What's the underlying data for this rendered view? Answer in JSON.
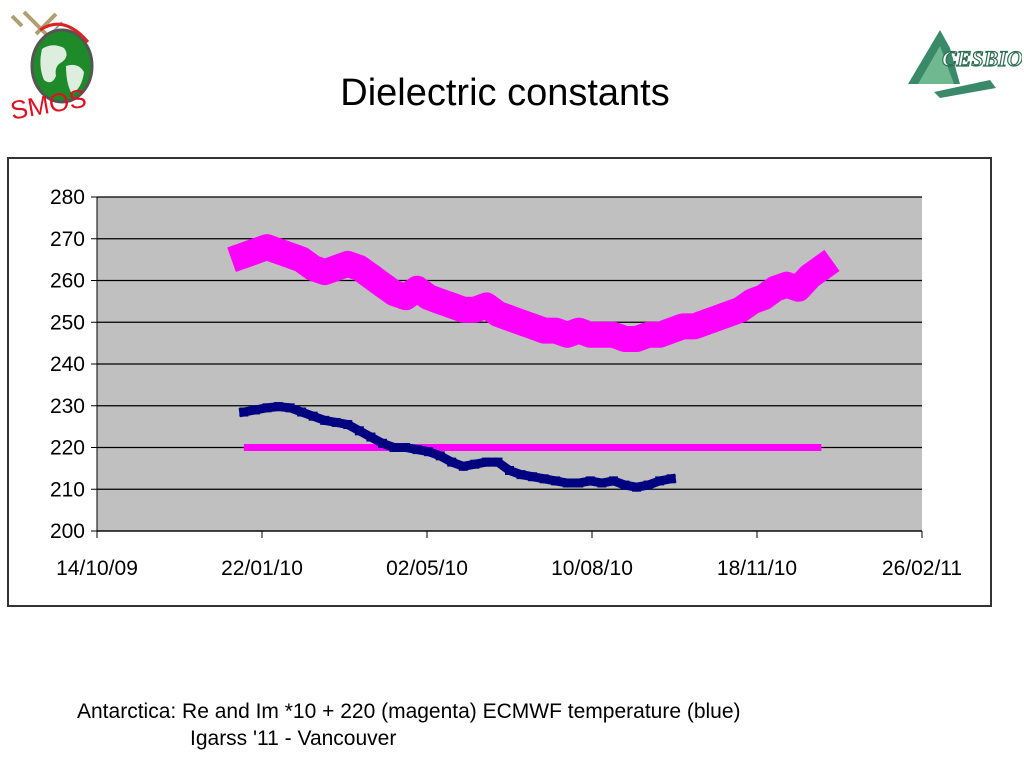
{
  "title": "Dielectric constants",
  "logos": {
    "left": {
      "name": "smos-logo",
      "text": "SMOS"
    },
    "right": {
      "name": "cesbio-logo",
      "text": "CESBIO"
    }
  },
  "caption": {
    "line1": "Antarctica: Re and Im *10 + 220 (magenta) ECMWF temperature (blue)",
    "line2": "Igarss '11 - Vancouver"
  },
  "colors": {
    "plot_background": "#c0c0c0",
    "grid": "#000000",
    "magenta": "#ff00ff",
    "blue": "#000080"
  },
  "chart_data": {
    "type": "scatter",
    "grid": true,
    "ylim": [
      200,
      280
    ],
    "yticks": [
      "200",
      "210",
      "220",
      "230",
      "240",
      "250",
      "260",
      "270",
      "280"
    ],
    "xlim": [
      "2009-10-14",
      "2011-02-26"
    ],
    "xticks": [
      "14/10/09",
      "22/01/10",
      "02/05/10",
      "10/08/10",
      "18/11/10",
      "26/02/11"
    ],
    "series": [
      {
        "color": "#ff00ff",
        "x": [
          "2010-01-11",
          "2010-01-18",
          "2010-01-25",
          "2010-02-01",
          "2010-02-08",
          "2010-02-15",
          "2010-02-22",
          "2010-03-01",
          "2010-03-08",
          "2010-03-15",
          "2010-03-22",
          "2010-03-29",
          "2010-04-05",
          "2010-04-12",
          "2010-04-19",
          "2010-04-26",
          "2010-05-03",
          "2010-05-10",
          "2010-05-17",
          "2010-05-24",
          "2010-05-31",
          "2010-06-07",
          "2010-06-14",
          "2010-06-21",
          "2010-06-28",
          "2010-07-05",
          "2010-07-12",
          "2010-07-19",
          "2010-07-26",
          "2010-08-02",
          "2010-08-09",
          "2010-08-16",
          "2010-08-23",
          "2010-08-30",
          "2010-09-06",
          "2010-09-13",
          "2010-09-20",
          "2010-09-27",
          "2010-10-04",
          "2010-10-11",
          "2010-10-18",
          "2010-10-25",
          "2010-11-01",
          "2010-11-08",
          "2010-11-15",
          "2010-11-22",
          "2010-11-29",
          "2010-12-06",
          "2010-12-13",
          "2010-12-20",
          "2010-12-27"
        ],
        "y": [
          266,
          267,
          268,
          267,
          266,
          265,
          263,
          262,
          263,
          264,
          263,
          261,
          259,
          257,
          256,
          258,
          256,
          255,
          254,
          253,
          253,
          254,
          252,
          251,
          250,
          249,
          248,
          248,
          247,
          248,
          247,
          247,
          247,
          246,
          246,
          247,
          247,
          248,
          249,
          249,
          250,
          251,
          252,
          253,
          255,
          256,
          258,
          259,
          258,
          261,
          263
        ]
      },
      {
        "color": "#ff00ff",
        "x": [
          "2010-01-11",
          "2010-12-27"
        ],
        "y": [
          220,
          220
        ],
        "style": "line"
      },
      {
        "color": "#000080",
        "x": [
          "2010-01-11",
          "2010-01-18",
          "2010-01-25",
          "2010-02-01",
          "2010-02-08",
          "2010-02-15",
          "2010-02-22",
          "2010-03-01",
          "2010-03-08",
          "2010-03-15",
          "2010-03-22",
          "2010-03-29",
          "2010-04-05",
          "2010-04-12",
          "2010-04-19",
          "2010-04-26",
          "2010-05-03",
          "2010-05-10",
          "2010-05-17",
          "2010-05-24",
          "2010-05-31",
          "2010-06-07",
          "2010-06-14",
          "2010-06-21",
          "2010-06-28",
          "2010-07-05",
          "2010-07-12",
          "2010-07-19",
          "2010-07-26",
          "2010-08-02",
          "2010-08-09",
          "2010-08-16",
          "2010-08-23",
          "2010-08-30",
          "2010-09-06",
          "2010-09-13",
          "2010-09-20",
          "2010-09-27"
        ],
        "y": [
          228.5,
          229,
          229.5,
          229.8,
          229.5,
          228.5,
          227.5,
          226.5,
          226,
          225.5,
          224,
          222.5,
          221,
          220,
          220,
          219.5,
          219,
          218,
          216.5,
          215.5,
          216,
          216.5,
          216.5,
          214.5,
          213.5,
          213,
          212.5,
          212,
          211.5,
          211.5,
          212,
          211.5,
          212,
          211,
          210.5,
          211,
          212,
          212.5
        ]
      }
    ]
  }
}
